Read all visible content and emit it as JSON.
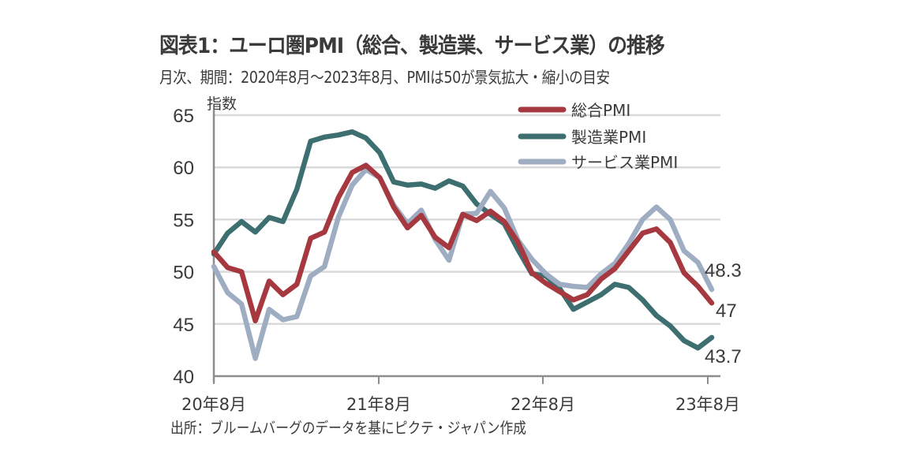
{
  "chart_data": {
    "type": "line",
    "title": "図表1：ユーロ圏PMI（総合、製造業、サービス業）の推移",
    "subtitle": "月次、期間：2020年8月～2023年8月、PMIは50が景気拡大・縮小の目安",
    "source": "出所：ブルームバーグのデータを基にピクテ・ジャパン作成",
    "ylabel": "指数",
    "xlabel": "",
    "ylim": [
      40,
      65
    ],
    "yticks": [
      "65",
      "60",
      "55",
      "50",
      "45",
      "40"
    ],
    "ytick_values": [
      65,
      60,
      55,
      50,
      45,
      40
    ],
    "xticks": [
      {
        "label": "20年8月",
        "index": 0
      },
      {
        "label": "21年8月",
        "index": 12
      },
      {
        "label": "22年8月",
        "index": 24
      },
      {
        "label": "23年8月",
        "index": 36
      }
    ],
    "x_range": [
      "2020-08",
      "2023-08"
    ],
    "grid": true,
    "legend_position": "top-right",
    "series": [
      {
        "name": "総合PMI",
        "color": "#A6383F",
        "end_label": "47",
        "values": [
          51.9,
          50.4,
          50.0,
          45.3,
          49.1,
          47.8,
          48.8,
          53.2,
          53.8,
          57.1,
          59.5,
          60.2,
          59.0,
          56.2,
          54.2,
          55.4,
          53.3,
          52.3,
          55.5,
          54.9,
          55.8,
          54.8,
          52.8,
          49.9,
          48.9,
          48.1,
          47.3,
          47.8,
          49.3,
          50.3,
          52.0,
          53.7,
          54.1,
          52.8,
          49.9,
          48.6,
          47.0
        ]
      },
      {
        "name": "製造業PMI",
        "color": "#3D6E70",
        "end_label": "43.7",
        "values": [
          51.7,
          53.7,
          54.8,
          53.8,
          55.2,
          54.8,
          57.9,
          62.5,
          62.9,
          63.1,
          63.4,
          62.8,
          61.4,
          58.6,
          58.3,
          58.4,
          58.0,
          58.7,
          58.2,
          56.5,
          55.5,
          54.6,
          52.1,
          49.8,
          49.6,
          48.4,
          46.4,
          47.1,
          47.8,
          48.8,
          48.5,
          47.3,
          45.8,
          44.8,
          43.4,
          42.7,
          43.7
        ]
      },
      {
        "name": "サービス業PMI",
        "color": "#9FADC2",
        "end_label": "48.3",
        "values": [
          50.5,
          48.0,
          46.9,
          41.7,
          46.4,
          45.4,
          45.7,
          49.6,
          50.5,
          55.2,
          58.3,
          59.8,
          59.0,
          56.4,
          54.6,
          55.9,
          53.1,
          51.1,
          55.5,
          55.6,
          57.7,
          56.1,
          53.0,
          51.2,
          49.8,
          48.8,
          48.6,
          48.5,
          49.8,
          50.8,
          52.7,
          55.0,
          56.2,
          55.0,
          52.0,
          50.9,
          48.3
        ]
      }
    ],
    "colors": {
      "grid": "#D9D9D9",
      "axis": "#8C8C8C"
    }
  }
}
